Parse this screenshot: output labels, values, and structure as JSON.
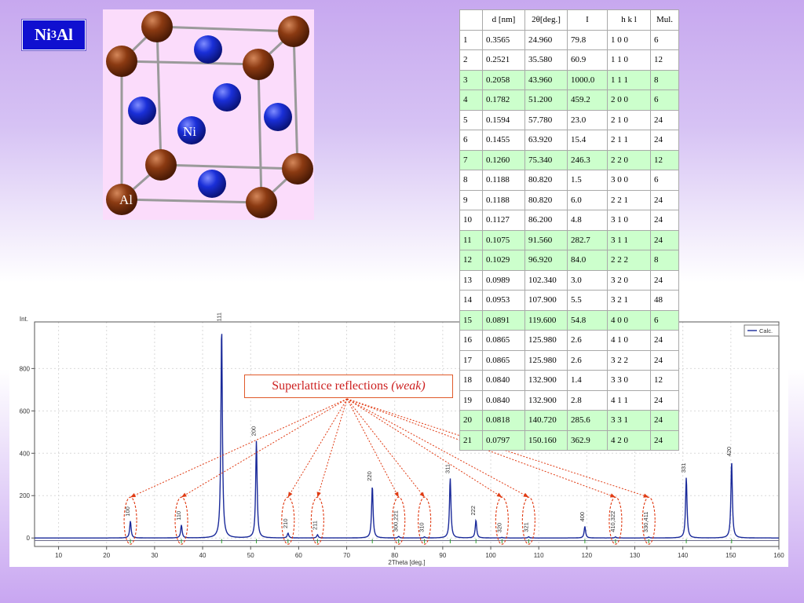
{
  "title": {
    "main": "Ni",
    "sub": "3",
    "tail": "Al"
  },
  "crystal": {
    "ni_label": "Ni",
    "al_label": "Al",
    "colors": {
      "al": "#8b3a12",
      "ni": "#1a2fd8",
      "bond": "#9a9a9a"
    }
  },
  "table": {
    "headers": [
      "",
      "d [nm]",
      "2θ[deg.]",
      "I",
      "h k l",
      "Mul."
    ],
    "rows": [
      {
        "n": "1",
        "d": "0.3565",
        "tt": "24.960",
        "i": "79.8",
        "hkl": "1 0 0",
        "mul": "6",
        "hl": false
      },
      {
        "n": "2",
        "d": "0.2521",
        "tt": "35.580",
        "i": "60.9",
        "hkl": "1 1 0",
        "mul": "12",
        "hl": false
      },
      {
        "n": "3",
        "d": "0.2058",
        "tt": "43.960",
        "i": "1000.0",
        "hkl": "1 1 1",
        "mul": "8",
        "hl": true
      },
      {
        "n": "4",
        "d": "0.1782",
        "tt": "51.200",
        "i": "459.2",
        "hkl": "2 0 0",
        "mul": "6",
        "hl": true
      },
      {
        "n": "5",
        "d": "0.1594",
        "tt": "57.780",
        "i": "23.0",
        "hkl": "2 1 0",
        "mul": "24",
        "hl": false
      },
      {
        "n": "6",
        "d": "0.1455",
        "tt": "63.920",
        "i": "15.4",
        "hkl": "2 1 1",
        "mul": "24",
        "hl": false
      },
      {
        "n": "7",
        "d": "0.1260",
        "tt": "75.340",
        "i": "246.3",
        "hkl": "2 2 0",
        "mul": "12",
        "hl": true
      },
      {
        "n": "8",
        "d": "0.1188",
        "tt": "80.820",
        "i": "1.5",
        "hkl": "3 0 0",
        "mul": "6",
        "hl": false
      },
      {
        "n": "9",
        "d": "0.1188",
        "tt": "80.820",
        "i": "6.0",
        "hkl": "2 2 1",
        "mul": "24",
        "hl": false
      },
      {
        "n": "10",
        "d": "0.1127",
        "tt": "86.200",
        "i": "4.8",
        "hkl": "3 1 0",
        "mul": "24",
        "hl": false
      },
      {
        "n": "11",
        "d": "0.1075",
        "tt": "91.560",
        "i": "282.7",
        "hkl": "3 1 1",
        "mul": "24",
        "hl": true
      },
      {
        "n": "12",
        "d": "0.1029",
        "tt": "96.920",
        "i": "84.0",
        "hkl": "2 2 2",
        "mul": "8",
        "hl": true
      },
      {
        "n": "13",
        "d": "0.0989",
        "tt": "102.340",
        "i": "3.0",
        "hkl": "3 2 0",
        "mul": "24",
        "hl": false
      },
      {
        "n": "14",
        "d": "0.0953",
        "tt": "107.900",
        "i": "5.5",
        "hkl": "3 2 1",
        "mul": "48",
        "hl": false
      },
      {
        "n": "15",
        "d": "0.0891",
        "tt": "119.600",
        "i": "54.8",
        "hkl": "4 0 0",
        "mul": "6",
        "hl": true
      },
      {
        "n": "16",
        "d": "0.0865",
        "tt": "125.980",
        "i": "2.6",
        "hkl": "4 1 0",
        "mul": "24",
        "hl": false
      },
      {
        "n": "17",
        "d": "0.0865",
        "tt": "125.980",
        "i": "2.6",
        "hkl": "3 2 2",
        "mul": "24",
        "hl": false
      },
      {
        "n": "18",
        "d": "0.0840",
        "tt": "132.900",
        "i": "1.4",
        "hkl": "3 3 0",
        "mul": "12",
        "hl": false
      },
      {
        "n": "19",
        "d": "0.0840",
        "tt": "132.900",
        "i": "2.8",
        "hkl": "4 1 1",
        "mul": "24",
        "hl": false
      },
      {
        "n": "20",
        "d": "0.0818",
        "tt": "140.720",
        "i": "285.6",
        "hkl": "3 3 1",
        "mul": "24",
        "hl": true
      },
      {
        "n": "21",
        "d": "0.0797",
        "tt": "150.160",
        "i": "362.9",
        "hkl": "4 2 0",
        "mul": "24",
        "hl": true
      }
    ]
  },
  "annotation": {
    "text": "Superlattice reflections ",
    "emph": "(weak)",
    "color": "#d63a1a"
  },
  "chart_data": {
    "type": "line",
    "ylabel": "Int.",
    "xlabel": "2Theta [deg.]",
    "legend": "Calc.",
    "legend_position": "top-right",
    "grid": true,
    "xlim": [
      5,
      160
    ],
    "ylim": [
      -40,
      1020
    ],
    "xticks": [
      10,
      20,
      30,
      40,
      50,
      60,
      70,
      80,
      90,
      100,
      110,
      120,
      130,
      140,
      150,
      160
    ],
    "yticks": [
      0,
      200,
      400,
      600,
      800
    ],
    "line_color": "#1a2a9a",
    "peaks": [
      {
        "x": 24.96,
        "y": 79.8,
        "label": "100",
        "super": true
      },
      {
        "x": 35.58,
        "y": 60.9,
        "label": "110",
        "super": true
      },
      {
        "x": 43.96,
        "y": 1000.0,
        "label": "111",
        "super": false
      },
      {
        "x": 51.2,
        "y": 459.2,
        "label": "200",
        "super": false
      },
      {
        "x": 57.78,
        "y": 23.0,
        "label": "210",
        "super": true
      },
      {
        "x": 63.92,
        "y": 15.4,
        "label": "211",
        "super": true
      },
      {
        "x": 75.34,
        "y": 246.3,
        "label": "220",
        "super": false
      },
      {
        "x": 80.82,
        "y": 7.5,
        "label": "300,221",
        "super": true
      },
      {
        "x": 86.2,
        "y": 4.8,
        "label": "310",
        "super": true
      },
      {
        "x": 91.56,
        "y": 282.7,
        "label": "311",
        "super": false
      },
      {
        "x": 96.92,
        "y": 84.0,
        "label": "222",
        "super": false
      },
      {
        "x": 102.34,
        "y": 3.0,
        "label": "320",
        "super": true
      },
      {
        "x": 107.9,
        "y": 5.5,
        "label": "321",
        "super": true
      },
      {
        "x": 119.6,
        "y": 54.8,
        "label": "400",
        "super": false
      },
      {
        "x": 125.98,
        "y": 5.2,
        "label": "410,322",
        "super": true
      },
      {
        "x": 132.9,
        "y": 4.2,
        "label": "330,411",
        "super": true
      },
      {
        "x": 140.72,
        "y": 285.6,
        "label": "331",
        "super": false
      },
      {
        "x": 150.16,
        "y": 362.9,
        "label": "420",
        "super": false
      }
    ]
  }
}
